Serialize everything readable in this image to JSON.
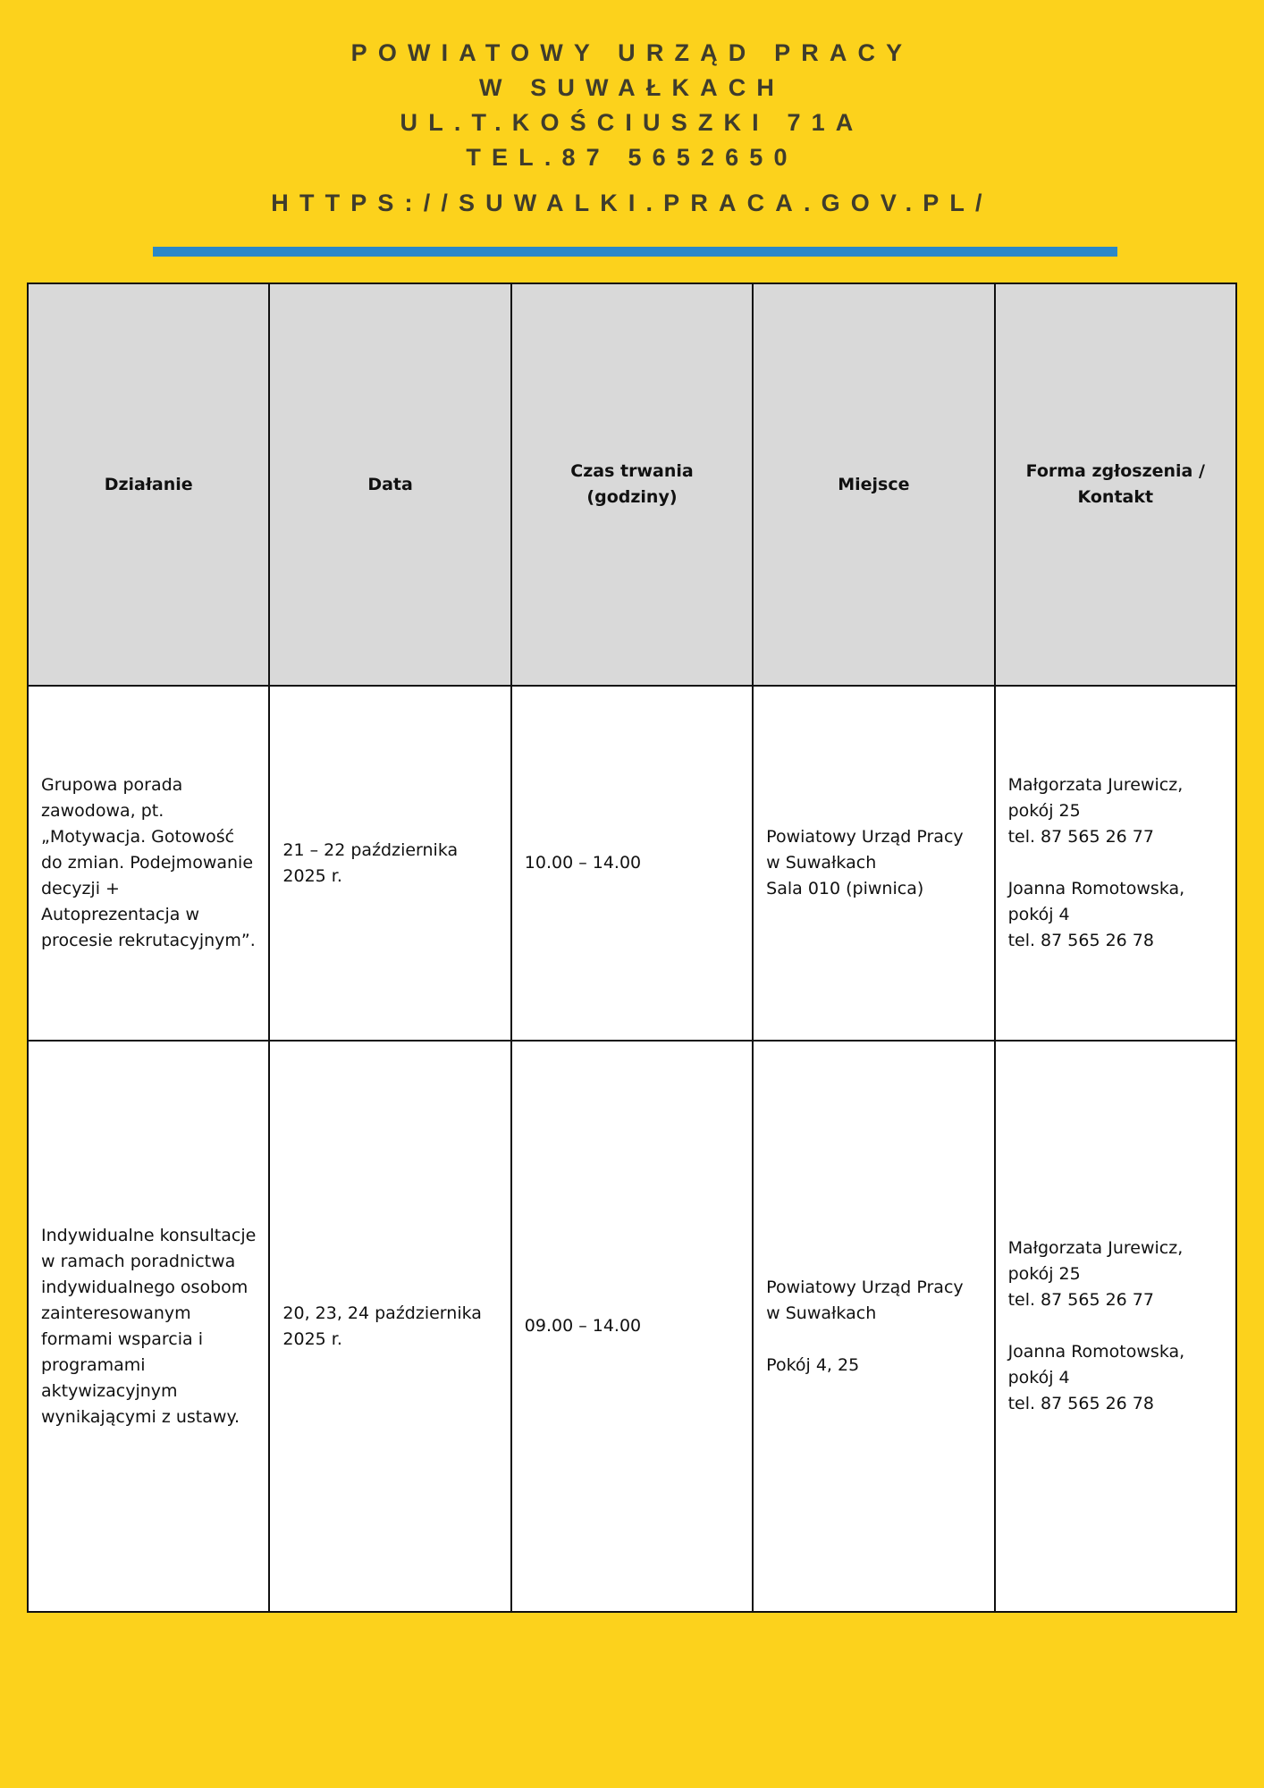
{
  "header": {
    "lines": [
      "POWIATOWY URZĄD PRACY",
      "W SUWAŁKACH",
      "UL.T.KOŚCIUSZKI 71A",
      "TEL.87 5652650"
    ],
    "url": "HTTPS://SUWALKI.PRACA.GOV.PL/",
    "bar_color": "#2a88c8"
  },
  "table": {
    "headers": [
      "Działanie",
      "Data",
      "Czas trwania (godziny)",
      "Miejsce",
      "Forma zgłoszenia / Kontakt"
    ],
    "rows": [
      [
        "Grupowa porada zawodowa, pt. „Motywacja. Gotowość do zmian. Podejmowanie decyzji + Autoprezentacja w procesie rekrutacyjnym”.",
        "21 – 22 października 2025 r.",
        "10.00 – 14.00",
        "Powiatowy Urząd Pracy w Suwałkach\n Sala 010 (piwnica)",
        "Małgorzata Jurewicz, pokój 25\ntel. 87 565 26 77\n\nJoanna Romotowska, pokój 4\ntel. 87 565 26 78"
      ],
      [
        "Indywidualne konsultacje w ramach poradnictwa indywidualnego osobom zainteresowanym formami wsparcia i programami aktywizacyjnym wynikającymi z ustawy.",
        "20, 23, 24 października 2025 r.",
        "09.00 – 14.00",
        "Powiatowy Urząd Pracy w Suwałkach\n\nPokój 4, 25",
        "Małgorzata Jurewicz, pokój 25\ntel. 87 565 26 77\n\nJoanna Romotowska, pokój 4\ntel. 87 565 26 78"
      ]
    ]
  }
}
